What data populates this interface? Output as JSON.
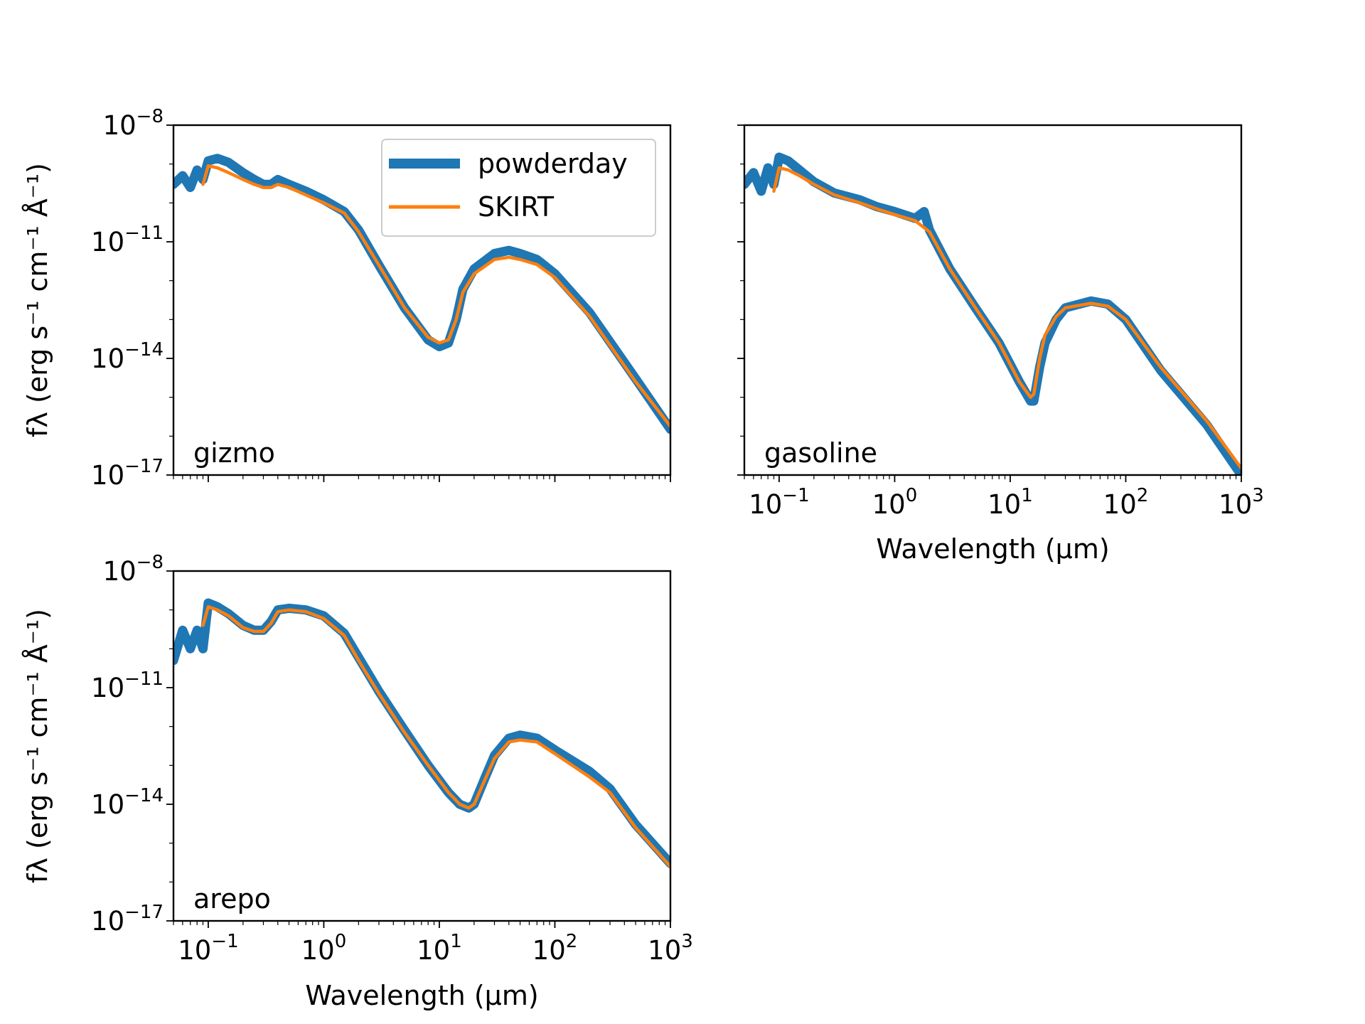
{
  "chart_data": [
    {
      "type": "line",
      "panel_label": "gizmo",
      "xscale": "log",
      "yscale": "log",
      "xlim": [
        0.05,
        1000
      ],
      "ylim": [
        1e-17,
        1e-08
      ],
      "xlabel": "",
      "ylabel": "fλ (erg s⁻¹ cm⁻¹ Å⁻¹)",
      "legend": "top-right",
      "series": [
        {
          "name": "powderday",
          "color": "#1f77b4",
          "x": [
            0.05,
            0.06,
            0.07,
            0.08,
            0.09,
            0.1,
            0.12,
            0.15,
            0.2,
            0.25,
            0.3,
            0.35,
            0.4,
            0.5,
            0.7,
            1.0,
            1.5,
            2,
            3,
            5,
            8,
            10,
            12,
            14,
            16,
            20,
            30,
            40,
            50,
            70,
            100,
            200,
            500,
            1000
          ],
          "y": [
            3e-10,
            5e-10,
            2.5e-10,
            7e-10,
            4e-10,
            1.2e-09,
            1.4e-09,
            1.1e-09,
            6e-10,
            4e-10,
            3e-10,
            3e-10,
            4e-10,
            3e-10,
            2e-10,
            1.2e-10,
            6e-11,
            2e-11,
            2.5e-12,
            2e-13,
            3e-14,
            2e-14,
            2.5e-14,
            1e-13,
            6e-13,
            2e-12,
            5e-12,
            6e-12,
            5e-12,
            3.5e-12,
            1.5e-12,
            1.5e-13,
            3e-15,
            1.5e-16
          ]
        },
        {
          "name": "SKIRT",
          "color": "#ff7f0e",
          "x": [
            0.09,
            0.1,
            0.12,
            0.15,
            0.2,
            0.25,
            0.3,
            0.35,
            0.4,
            0.5,
            0.7,
            1.0,
            1.5,
            2,
            3,
            5,
            8,
            10,
            12,
            14,
            16,
            20,
            30,
            40,
            50,
            70,
            100,
            200,
            500,
            1000
          ],
          "y": [
            3e-10,
            9e-10,
            8e-10,
            6e-10,
            4e-10,
            3e-10,
            2.5e-10,
            2.5e-10,
            3e-10,
            2.5e-10,
            1.6e-10,
            1e-10,
            5.5e-11,
            1.8e-11,
            2.5e-12,
            2e-13,
            3.5e-14,
            2.5e-14,
            3e-14,
            1e-13,
            5e-13,
            1.5e-12,
            3.5e-12,
            4e-12,
            3.5e-12,
            2.6e-12,
            1.2e-12,
            1.2e-13,
            2.5e-15,
            1.8e-16
          ]
        }
      ]
    },
    {
      "type": "line",
      "panel_label": "gasoline",
      "xscale": "log",
      "yscale": "log",
      "xlim": [
        0.05,
        1000
      ],
      "ylim": [
        1e-17,
        1e-08
      ],
      "xlabel": "Wavelength (μm)",
      "ylabel": "",
      "series": [
        {
          "name": "powderday",
          "color": "#1f77b4",
          "x": [
            0.05,
            0.06,
            0.07,
            0.08,
            0.09,
            0.1,
            0.12,
            0.15,
            0.2,
            0.3,
            0.5,
            0.7,
            1.0,
            1.5,
            1.8,
            2,
            3,
            5,
            8,
            12,
            15,
            16,
            18,
            20,
            25,
            30,
            50,
            70,
            100,
            200,
            500,
            1000
          ],
          "y": [
            3e-10,
            6e-10,
            2e-10,
            8e-10,
            3e-10,
            1.5e-09,
            1.2e-09,
            7e-10,
            3.5e-10,
            1.8e-10,
            1.2e-10,
            8e-11,
            6e-11,
            4e-11,
            6e-11,
            2e-11,
            2e-12,
            2e-13,
            2.5e-14,
            2.5e-15,
            8e-16,
            8e-16,
            6e-15,
            2.5e-14,
            1e-13,
            2e-13,
            3e-13,
            2.5e-13,
            1e-13,
            5e-15,
            2e-16,
            1e-17
          ]
        },
        {
          "name": "SKIRT",
          "color": "#ff7f0e",
          "x": [
            0.09,
            0.1,
            0.12,
            0.15,
            0.2,
            0.3,
            0.5,
            0.7,
            1.0,
            1.5,
            2,
            3,
            5,
            8,
            12,
            15,
            16,
            18,
            20,
            25,
            30,
            50,
            70,
            100,
            200,
            500,
            1000
          ],
          "y": [
            2e-10,
            8e-10,
            7e-10,
            5e-10,
            3e-10,
            1.6e-10,
            1e-10,
            7e-11,
            5e-11,
            3.5e-11,
            1.8e-11,
            2e-12,
            2e-13,
            2.5e-14,
            2.5e-15,
            1e-15,
            1.2e-15,
            1e-14,
            4e-14,
            1.2e-13,
            2e-13,
            2.6e-13,
            2.2e-13,
            1e-13,
            6e-15,
            2.5e-16,
            1.5e-17
          ]
        }
      ]
    },
    {
      "type": "line",
      "panel_label": "arepo",
      "xscale": "log",
      "yscale": "log",
      "xlim": [
        0.05,
        1000
      ],
      "ylim": [
        1e-17,
        1e-08
      ],
      "xlabel": "Wavelength (μm)",
      "ylabel": "fλ (erg s⁻¹ cm⁻¹ Å⁻¹)",
      "series": [
        {
          "name": "powderday",
          "color": "#1f77b4",
          "x": [
            0.05,
            0.06,
            0.07,
            0.08,
            0.09,
            0.1,
            0.12,
            0.15,
            0.2,
            0.25,
            0.3,
            0.35,
            0.4,
            0.5,
            0.7,
            1.0,
            1.5,
            2,
            3,
            5,
            8,
            12,
            15,
            18,
            20,
            25,
            30,
            40,
            50,
            70,
            100,
            200,
            300,
            500,
            1000
          ],
          "y": [
            5e-11,
            3e-10,
            1e-10,
            3e-10,
            1e-10,
            1.5e-09,
            1.2e-09,
            8e-10,
            4e-10,
            3e-10,
            3e-10,
            5e-10,
            1e-09,
            1.1e-09,
            1e-09,
            7e-10,
            2.5e-10,
            6e-11,
            8e-12,
            8e-13,
            1e-13,
            2e-14,
            1e-14,
            8e-15,
            1e-14,
            5e-14,
            1.8e-13,
            5e-13,
            6e-13,
            5e-13,
            2.5e-13,
            7e-14,
            2.5e-14,
            3e-15,
            3e-16
          ]
        },
        {
          "name": "SKIRT",
          "color": "#ff7f0e",
          "x": [
            0.09,
            0.1,
            0.12,
            0.15,
            0.2,
            0.25,
            0.3,
            0.35,
            0.4,
            0.5,
            0.7,
            1.0,
            1.5,
            2,
            3,
            5,
            8,
            12,
            15,
            18,
            20,
            25,
            30,
            40,
            50,
            70,
            100,
            200,
            300,
            500,
            1000
          ],
          "y": [
            4e-10,
            1.2e-09,
            1e-09,
            7e-10,
            3.5e-10,
            2.8e-10,
            2.8e-10,
            4.5e-10,
            9e-10,
            1e-09,
            9e-10,
            6e-10,
            2.2e-10,
            5e-11,
            7e-12,
            7e-13,
            1e-13,
            2e-14,
            1e-14,
            8e-15,
            1e-14,
            4.5e-14,
            1.5e-13,
            4e-13,
            4.5e-13,
            4e-13,
            2e-13,
            5e-14,
            2e-14,
            2.5e-15,
            2.5e-16
          ]
        }
      ]
    }
  ],
  "legend": {
    "entries": [
      {
        "label": "powderday",
        "color": "#1f77b4"
      },
      {
        "label": "SKIRT",
        "color": "#ff7f0e"
      }
    ]
  }
}
